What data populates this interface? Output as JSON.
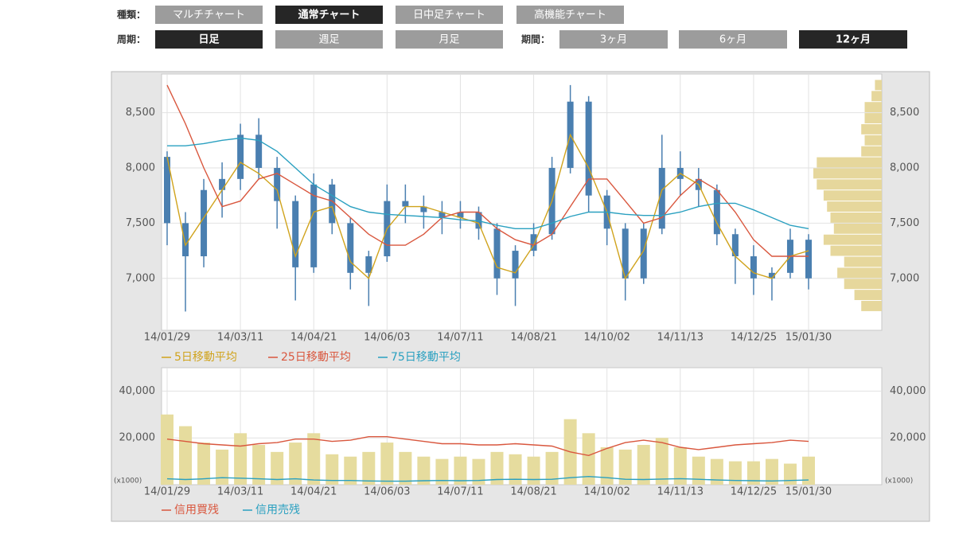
{
  "controls": [
    {
      "label": "種類：",
      "buttons": [
        {
          "text": "マルチチャート",
          "active": false
        },
        {
          "text": "通常チャート",
          "active": true
        },
        {
          "text": "日中足チャート",
          "active": false
        },
        {
          "text": "高機能チャート",
          "active": false
        }
      ]
    },
    {
      "label": "周期：",
      "buttons": [
        {
          "text": "日足",
          "active": true
        },
        {
          "text": "週足",
          "active": false
        },
        {
          "text": "月足",
          "active": false
        }
      ]
    },
    {
      "label": "期間：",
      "buttons": [
        {
          "text": "3ヶ月",
          "active": false
        },
        {
          "text": "6ヶ月",
          "active": false
        },
        {
          "text": "12ヶ月",
          "active": true
        }
      ]
    }
  ],
  "chart_data": [
    {
      "type": "candlestick",
      "color": "#4a7fb0",
      "grid": true,
      "categories": [
        "14/01/29",
        null,
        null,
        null,
        "14/03/11",
        null,
        null,
        null,
        "14/04/21",
        null,
        null,
        null,
        "14/06/03",
        null,
        null,
        null,
        "14/07/11",
        null,
        null,
        null,
        "14/08/21",
        null,
        null,
        null,
        "14/10/02",
        null,
        null,
        null,
        "14/11/13",
        null,
        null,
        null,
        "14/12/25",
        null,
        null,
        "15/01/30"
      ],
      "open": [
        8100,
        7500,
        7200,
        7800,
        7900,
        8300,
        8000,
        7700,
        7100,
        7850,
        7500,
        7050,
        7200,
        7700,
        7650,
        7600,
        7550,
        7600,
        7450,
        7000,
        7250,
        7400,
        8000,
        8600,
        7750,
        7450,
        7000,
        7450,
        8000,
        7900,
        7800,
        7400,
        7200,
        7000,
        7050,
        7350
      ],
      "high": [
        8150,
        7600,
        7900,
        8050,
        8400,
        8450,
        8100,
        7750,
        7950,
        7900,
        7550,
        7250,
        7850,
        7850,
        7750,
        7700,
        7700,
        7650,
        7500,
        7300,
        7500,
        8100,
        8750,
        8650,
        7800,
        7500,
        7500,
        8300,
        8150,
        8000,
        7850,
        7450,
        7300,
        7100,
        7450,
        7400
      ],
      "low": [
        7300,
        6700,
        7100,
        7550,
        7800,
        7900,
        7450,
        6800,
        7050,
        7400,
        6900,
        6750,
        7150,
        7500,
        7450,
        7400,
        7450,
        7350,
        6850,
        6750,
        7200,
        7350,
        7950,
        7600,
        7300,
        6800,
        6950,
        7400,
        7750,
        7650,
        7300,
        6950,
        6850,
        6800,
        7000,
        6900
      ],
      "close": [
        7500,
        7200,
        7800,
        7900,
        8300,
        8000,
        7700,
        7100,
        7850,
        7500,
        7050,
        7200,
        7700,
        7650,
        7600,
        7550,
        7600,
        7450,
        7000,
        7250,
        7400,
        8000,
        8600,
        7750,
        7450,
        7000,
        7450,
        8000,
        7900,
        7800,
        7400,
        7200,
        7000,
        7050,
        7350,
        7000
      ],
      "series": [
        {
          "name": "5日移動平均",
          "color": "#d0a31c",
          "values": [
            8100,
            7300,
            7550,
            7800,
            8050,
            7950,
            7800,
            7200,
            7600,
            7650,
            7150,
            7000,
            7450,
            7650,
            7650,
            7600,
            7550,
            7500,
            7100,
            7050,
            7300,
            7700,
            8300,
            8000,
            7600,
            7000,
            7250,
            7800,
            7950,
            7850,
            7500,
            7200,
            7050,
            7000,
            7200,
            7250
          ]
        },
        {
          "name": "25日移動平均",
          "color": "#d9573e",
          "values": [
            8750,
            8400,
            8000,
            7650,
            7700,
            7900,
            7950,
            7850,
            7750,
            7700,
            7550,
            7400,
            7300,
            7300,
            7400,
            7550,
            7600,
            7600,
            7450,
            7350,
            7300,
            7400,
            7650,
            7900,
            7900,
            7700,
            7500,
            7550,
            7750,
            7900,
            7800,
            7600,
            7350,
            7200,
            7200,
            7200
          ]
        },
        {
          "name": "75日移動平均",
          "color": "#2aa0c0",
          "values": [
            8200,
            8200,
            8220,
            8250,
            8270,
            8250,
            8150,
            8000,
            7850,
            7750,
            7650,
            7600,
            7580,
            7570,
            7560,
            7550,
            7530,
            7520,
            7480,
            7450,
            7450,
            7500,
            7560,
            7600,
            7600,
            7580,
            7570,
            7570,
            7600,
            7650,
            7680,
            7680,
            7620,
            7550,
            7480,
            7450
          ]
        }
      ],
      "profile": {
        "color": "#e6d79c",
        "bins": [
          6700,
          6800,
          6900,
          7000,
          7100,
          7200,
          7300,
          7400,
          7500,
          7600,
          7700,
          7800,
          7900,
          8000,
          8100,
          8200,
          8300,
          8400,
          8500,
          8600,
          8700,
          8800
        ],
        "values": [
          30,
          40,
          55,
          65,
          55,
          75,
          85,
          70,
          75,
          80,
          85,
          95,
          100,
          95,
          30,
          25,
          30,
          25,
          25,
          15,
          10
        ]
      },
      "ylim": [
        6530,
        8850
      ],
      "yticks": [
        {
          "value": 7000,
          "label": "7,000"
        },
        {
          "value": 7500,
          "label": "7,500"
        },
        {
          "value": 8000,
          "label": "8,000"
        },
        {
          "value": 8500,
          "label": "8,500"
        }
      ]
    },
    {
      "type": "bar",
      "color": "#e6dc9e",
      "grid": true,
      "unit_label": "(x1000)",
      "categories": [
        "14/01/29",
        null,
        null,
        null,
        "14/03/11",
        null,
        null,
        null,
        "14/04/21",
        null,
        null,
        null,
        "14/06/03",
        null,
        null,
        null,
        "14/07/11",
        null,
        null,
        null,
        "14/08/21",
        null,
        null,
        null,
        "14/10/02",
        null,
        null,
        null,
        "14/11/13",
        null,
        null,
        null,
        "14/12/25",
        null,
        null,
        "15/01/30"
      ],
      "values": [
        30000,
        25000,
        18000,
        15000,
        22000,
        17000,
        14000,
        18000,
        22000,
        13000,
        12000,
        14000,
        18000,
        14000,
        12000,
        11000,
        12000,
        11000,
        14000,
        13000,
        12000,
        14000,
        28000,
        22000,
        16000,
        15000,
        17000,
        20000,
        16000,
        12000,
        11000,
        10000,
        10000,
        11000,
        9000,
        12000
      ],
      "series": [
        {
          "name": "信用買残",
          "color": "#d9573e",
          "values": [
            19500,
            18500,
            17500,
            17000,
            16500,
            17500,
            18000,
            19500,
            19500,
            18500,
            19000,
            20500,
            20500,
            19500,
            18500,
            17500,
            17500,
            17000,
            17000,
            17500,
            17000,
            16500,
            14000,
            12500,
            15500,
            18000,
            19000,
            18000,
            16000,
            15000,
            16000,
            17000,
            17500,
            18000,
            19000,
            18500
          ]
        },
        {
          "name": "信用売残",
          "color": "#2aa0c0",
          "values": [
            2500,
            2200,
            2500,
            3000,
            2800,
            2500,
            2200,
            2500,
            2000,
            1800,
            1800,
            1600,
            1500,
            1500,
            1700,
            1800,
            1700,
            1800,
            2200,
            2300,
            2200,
            2300,
            3000,
            3500,
            3000,
            2300,
            2200,
            2400,
            2600,
            2300,
            2000,
            1800,
            1700,
            1600,
            1800,
            2000
          ]
        }
      ],
      "ylim": [
        0,
        50000
      ],
      "yticks": [
        {
          "value": 20000,
          "label": "20,000"
        },
        {
          "value": 40000,
          "label": "40,000"
        }
      ]
    }
  ]
}
